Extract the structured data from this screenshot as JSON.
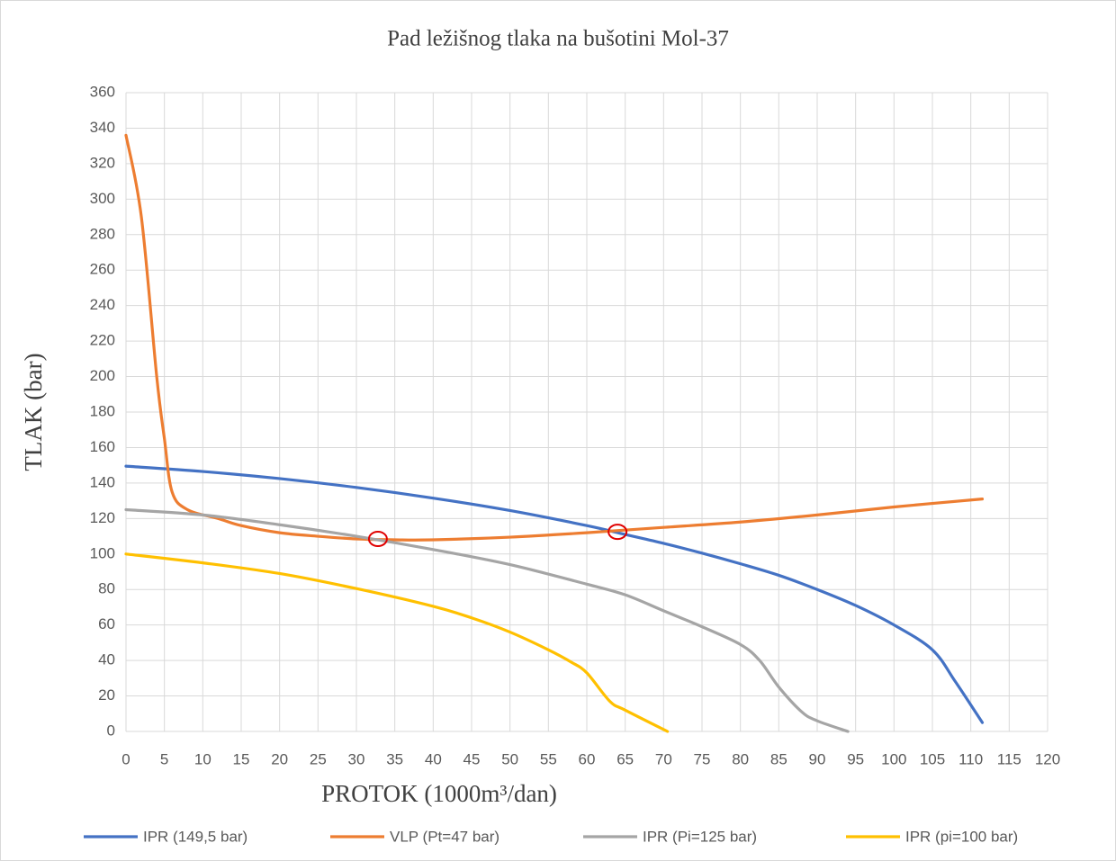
{
  "chart_data": {
    "type": "line",
    "title": "Pad ležišnog tlaka na bušotini Mol-37",
    "x_label": "PROTOK (1000m³/dan)",
    "y_label": "TLAK (bar)",
    "xlim": [
      0,
      120
    ],
    "ylim": [
      0,
      360
    ],
    "xticks": [
      0,
      5,
      10,
      15,
      20,
      25,
      30,
      35,
      40,
      45,
      50,
      55,
      60,
      65,
      70,
      75,
      80,
      85,
      90,
      95,
      100,
      105,
      110,
      115,
      120
    ],
    "yticks": [
      0,
      20,
      40,
      60,
      80,
      100,
      120,
      140,
      160,
      180,
      200,
      220,
      240,
      260,
      280,
      300,
      320,
      340,
      360
    ],
    "grid": true,
    "legend": "bottom",
    "series": [
      {
        "name": "IPR (149,5 bar)",
        "color": "#4472c4",
        "x": [
          0,
          10,
          20,
          30,
          40,
          50,
          60,
          65,
          70,
          75,
          80,
          85,
          90,
          95,
          100,
          105,
          108,
          111.5
        ],
        "values": [
          149.5,
          146.5,
          142.5,
          137.5,
          131.5,
          124.5,
          116,
          111,
          106,
          100.5,
          94.5,
          88,
          80,
          71,
          60,
          46,
          28,
          5
        ]
      },
      {
        "name": "VLP (Pt=47 bar)",
        "color": "#ed7d31",
        "x": [
          0,
          2,
          4,
          5,
          6,
          8,
          12,
          15,
          20,
          25,
          30,
          35,
          40,
          50,
          60,
          70,
          80,
          90,
          100,
          111.5
        ],
        "values": [
          336,
          290,
          200,
          165,
          135,
          125,
          120,
          116,
          112,
          110,
          108.5,
          108,
          108,
          109.5,
          112,
          115,
          118,
          122,
          126.5,
          131
        ]
      },
      {
        "name": "IPR (Pi=125 bar)",
        "color": "#a5a5a5",
        "x": [
          0,
          10,
          20,
          30,
          40,
          50,
          60,
          65,
          70,
          75,
          80,
          82.5,
          85,
          88,
          90,
          94
        ],
        "values": [
          125,
          122,
          116.5,
          110,
          102.5,
          94,
          83,
          77,
          68,
          59,
          49,
          40,
          25,
          11,
          6,
          0
        ]
      },
      {
        "name": "IPR (pi=100 bar)",
        "color": "#ffc000",
        "x": [
          0,
          10,
          20,
          30,
          40,
          45,
          50,
          55,
          58,
          60,
          63,
          65,
          70.5
        ],
        "values": [
          100,
          95,
          89,
          80.5,
          70.5,
          64,
          56,
          46,
          39,
          33,
          17,
          12,
          0
        ]
      }
    ],
    "highlights": {
      "color": "#e00000",
      "x": [
        32.8,
        64
      ],
      "values": [
        108.5,
        112.5
      ]
    }
  }
}
